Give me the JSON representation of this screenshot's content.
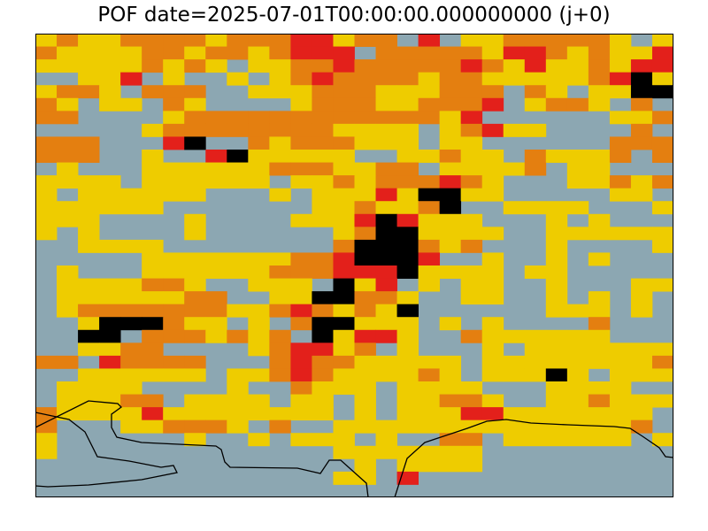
{
  "map": {
    "title": "POF date=2025-07-01T00:00:00.000000000 (j+0)",
    "colors": {
      "grey": "#8ca7b2",
      "yellow": "#eecc00",
      "orange": "#e47f10",
      "red": "#e3201b",
      "black": "#000000"
    },
    "legend_note": "no legend shown",
    "grid_note": "fire-danger classes per grid cell: 0=grey, 1=yellow, 2=orange, 3=red, 4=black",
    "grid": [
      "121122221222331220301122222101",
      "211112212212333022222133212113",
      "111112121011223222223213112133",
      "001130100101232222122111112341",
      "122102220011122211122202101144",
      "210110210000122211222301221020",
      "220000122222222222213000000112",
      "000001222222221111012311000020",
      "222000340021222111011000000222",
      "222001003411111001121102111202",
      "010001111112221122011112011000",
      "111101111110112122232100011212",
      "101111110001011131441100000110",
      "111111000000011211240011110001",
      "111000010000111343111000101000",
      "101000010000001244111100111111",
      "001111000000002444212000100001",
      "000001111111223444300100101000",
      "010001111112223334111101100000",
      "011112210011104130101100100011",
      "011111122001144221001100101010",
      "012222222112321214000000111010",
      "001444211010244111010100002000",
      "004402221212041331002111111000",
      "001122000012331201000101111111",
      "220322220002322111110111111112",
      "001111110112321111210111410111",
      "011110000100211101111000111100",
      "011122011110110101122100112111",
      "211113111111110101113311111110",
      "200011222102001111111111111120",
      "100000010010111010022011111101",
      "100000000000001111111000000000",
      "000000000000000101111000000000",
      "000000000000001103000000000000",
      "000000000000000000000000000000"
    ]
  }
}
